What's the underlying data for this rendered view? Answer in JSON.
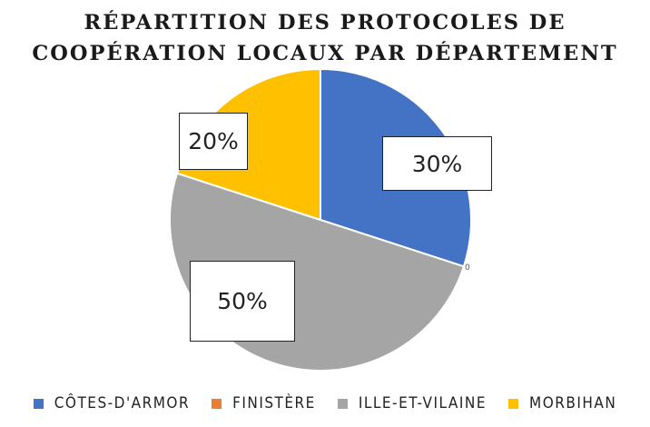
{
  "chart_data": {
    "type": "pie",
    "title_lines": [
      "RÉPARTITION DES PROTOCOLES DE",
      "COOPÉRATION LOCAUX PAR DÉPARTEMENT"
    ],
    "categories": [
      "CÔTES-D'ARMOR",
      "FINISTÈRE",
      "ILLE-ET-VILAINE",
      "MORBIHAN"
    ],
    "values": [
      30,
      0,
      50,
      20
    ],
    "data_labels": [
      "30%",
      "0",
      "50%",
      "20%"
    ],
    "colors": [
      "#4472C4",
      "#ED7D31",
      "#A5A5A5",
      "#FFC000"
    ],
    "legend_position": "bottom"
  }
}
